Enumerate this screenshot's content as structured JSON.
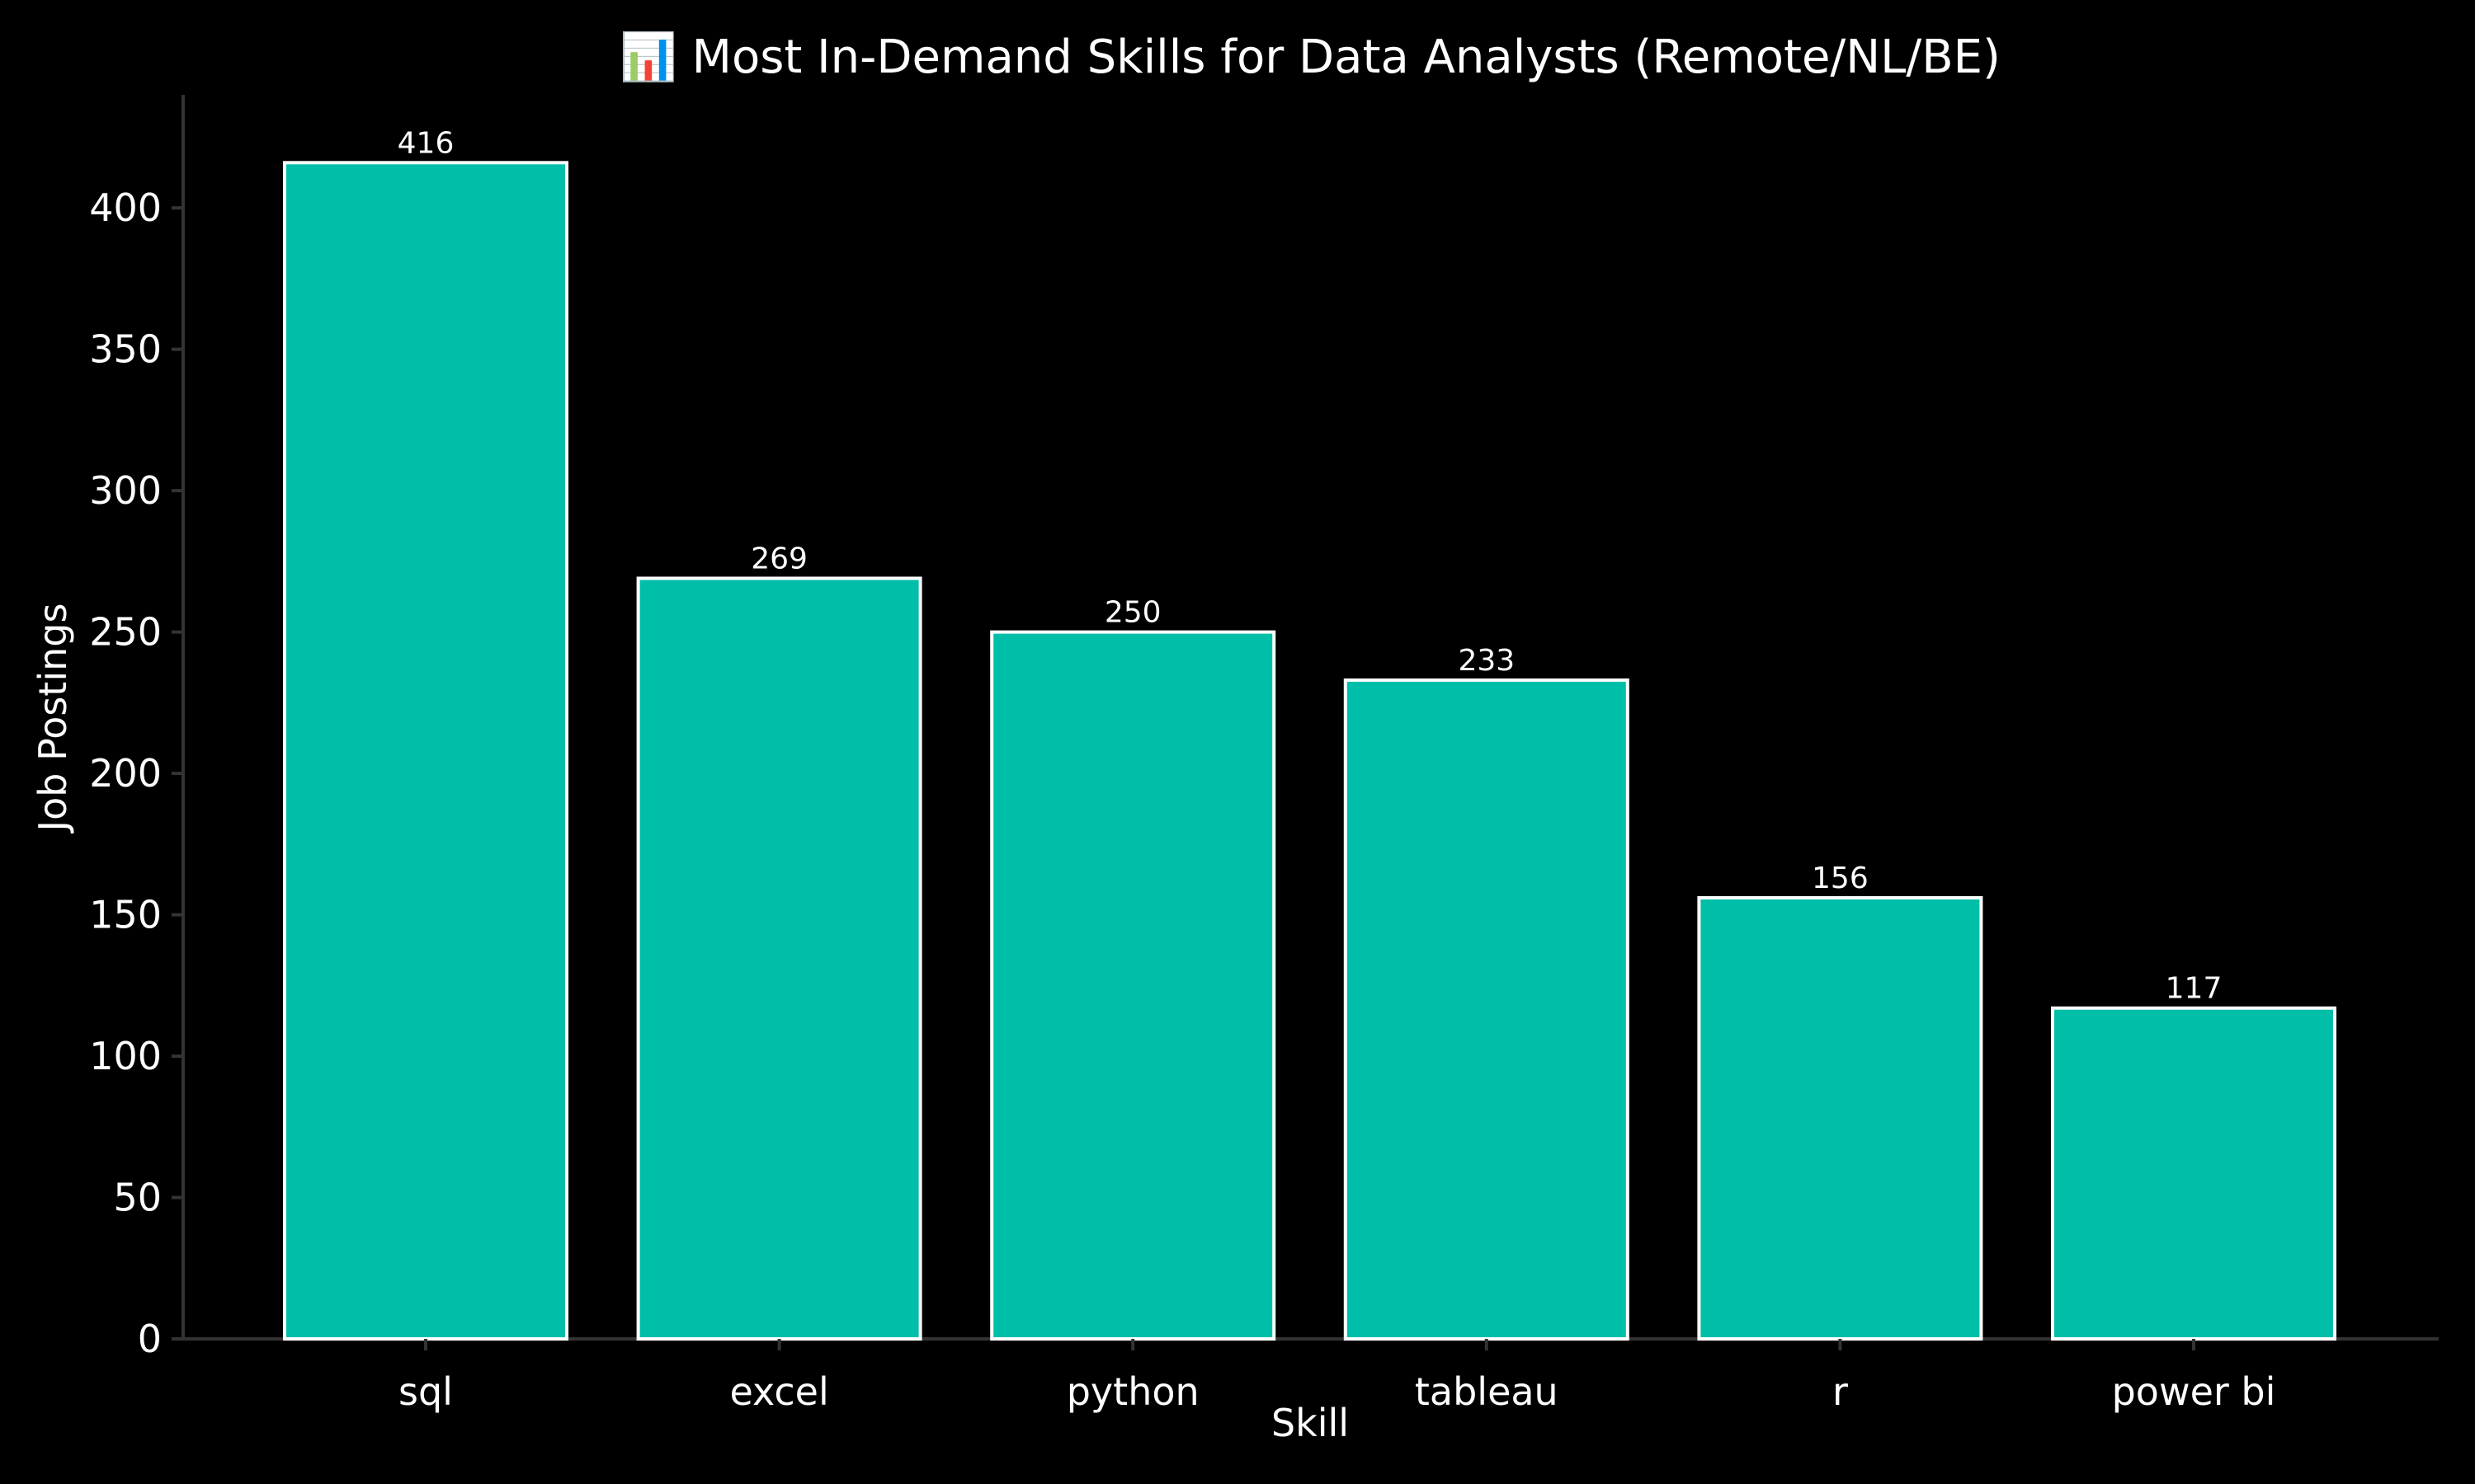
{
  "chart_data": {
    "type": "bar",
    "title": "📊 Most In-Demand Skills for Data Analysts (Remote/NL/BE)",
    "xlabel": "Skill",
    "ylabel": "Job Postings",
    "categories": [
      "sql",
      "excel",
      "python",
      "tableau",
      "r",
      "power bi"
    ],
    "values": [
      416,
      269,
      250,
      233,
      156,
      117
    ],
    "data_labels": [
      "416",
      "269",
      "250",
      "233",
      "156",
      "117"
    ],
    "ylim": [
      0,
      440
    ],
    "yticks": [
      0,
      50,
      100,
      150,
      200,
      250,
      300,
      350,
      400
    ],
    "ytick_labels": [
      "0",
      "50",
      "100",
      "150",
      "200",
      "250",
      "300",
      "350",
      "400"
    ],
    "grid": false,
    "legend": "none",
    "colors": {
      "background": "#000000",
      "bar_fill": "#00BFA8",
      "bar_edge": "#ffffff",
      "axis": "#333333",
      "text": "#ffffff"
    }
  }
}
